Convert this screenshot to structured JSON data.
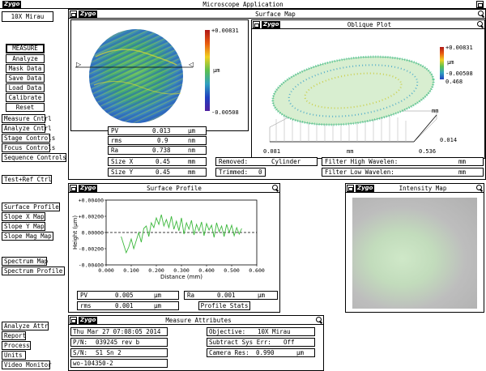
{
  "app": {
    "logo": "Zygo",
    "title": "Microscope  Application"
  },
  "objective_display": "10X  Mirau",
  "left_panel": {
    "measure": "MEASURE",
    "analyze": "Analyze",
    "mask_data": "Mask Data",
    "save_data": "Save Data",
    "load_data": "Load Data",
    "calibrate": "Calibrate",
    "reset": "Reset",
    "measure_cntrl": "Measure Cntrl",
    "analyze_cntrl": "Analyze Cntrl",
    "stage_controls": "Stage Controls",
    "focus_controls": "Focus Controls",
    "sequence_controls": "Sequence Controls",
    "test_ref": "Test+Ref Ctrl",
    "surface_profile": "Surface Profile",
    "slope_x_map": "Slope X Map",
    "slope_y_map": "Slope Y Map",
    "slope_mag_map": "Slope Mag Map",
    "spectrum_map": "Spectrum Map",
    "spectrum_profile": "Spectrum Profile",
    "analyze_attr": "Analyze Attr",
    "report": "Report",
    "process": "Process",
    "units": "Units",
    "video_monitor": "Video Monitor"
  },
  "surface_map": {
    "title": "Surface Map",
    "scale_max": "+0.00831",
    "scale_unit": "µm",
    "scale_min": "-0.00508",
    "stats": [
      {
        "label": "PV",
        "value": "0.013",
        "unit": "µm"
      },
      {
        "label": "rms",
        "value": "0.9",
        "unit": "nm"
      },
      {
        "label": "Ra",
        "value": "0.738",
        "unit": "nm"
      },
      {
        "label": "Size X",
        "value": "0.45",
        "unit": "mm"
      },
      {
        "label": "Size Y",
        "value": "0.45",
        "unit": "mm"
      }
    ],
    "removed_label": "Removed:",
    "removed_value": "Cylinder",
    "trimmed_label": "Trimmed:",
    "trimmed_value": "0",
    "filter_high_label": "Filter High Wavelen:",
    "filter_high_unit": "mm",
    "filter_low_label": "Filter Low  Wavelen:",
    "filter_low_unit": "mm"
  },
  "oblique_plot": {
    "title": "Oblique Plot",
    "scale_max": "+0.00831",
    "scale_unit": "µm",
    "scale_min": "-0.00508",
    "y_extent": "0.468",
    "y_unit": "mm",
    "y_start": "0.014",
    "x_start": "0.081",
    "x_unit": "mm",
    "x_end": "0.536"
  },
  "surface_profile": {
    "title": "Surface Profile",
    "ylabel": "Height (µm)",
    "xlabel": "Distance (mm)",
    "yticks": [
      "+0.00400",
      "+0.00200",
      "0.00000",
      "-0.00200",
      "-0.00400"
    ],
    "xticks": [
      "0.000",
      "0.100",
      "0.200",
      "0.300",
      "0.400",
      "0.500",
      "0.600"
    ],
    "pv_label": "PV",
    "pv_value": "0.005",
    "pv_unit": "µm",
    "rms_label": "rms",
    "rms_value": "0.001",
    "rms_unit": "µm",
    "ra_label": "Ra",
    "ra_value": "0.001",
    "ra_unit": "µm",
    "profile_stats": "Profile Stats"
  },
  "intensity_map": {
    "title": "Intensity Map"
  },
  "measure_attributes": {
    "title": "Measure Attributes",
    "datetime": "Thu Mar 27 07:08:05 2014",
    "pn_label": "P/N:",
    "pn_value": "039245 rev b",
    "sn_label": "S/N:",
    "sn_value": "S1 Sn 2",
    "wo": "wo-104350-2",
    "objective_label": "Objective:",
    "objective_value": "10X  Mirau",
    "subtract_label": "Subtract Sys Err:",
    "subtract_value": "Off",
    "camera_label": "Camera Res:",
    "camera_value": "0.990",
    "camera_unit": "µm"
  },
  "chart_data": {
    "type": "line",
    "x": [
      0.06,
      0.07,
      0.08,
      0.09,
      0.1,
      0.11,
      0.12,
      0.13,
      0.14,
      0.15,
      0.16,
      0.17,
      0.18,
      0.19,
      0.2,
      0.21,
      0.22,
      0.23,
      0.24,
      0.25,
      0.26,
      0.27,
      0.28,
      0.29,
      0.3,
      0.31,
      0.32,
      0.33,
      0.34,
      0.35,
      0.36,
      0.37,
      0.38,
      0.39,
      0.4,
      0.41,
      0.42,
      0.43,
      0.44,
      0.45,
      0.46,
      0.47,
      0.48,
      0.49,
      0.5,
      0.51,
      0.52,
      0.53,
      0.54
    ],
    "series": [
      {
        "values": [
          -0.0005,
          -0.0015,
          -0.0025,
          -0.0018,
          -0.0008,
          -0.002,
          -0.001,
          0.0,
          -0.0012,
          0.0005,
          0.0008,
          -0.0005,
          0.0012,
          0.0006,
          0.0018,
          0.001,
          0.0022,
          0.0008,
          0.0016,
          0.0006,
          0.002,
          0.0004,
          0.0014,
          0.0002,
          0.0018,
          -0.0002,
          0.0012,
          0.0004,
          0.0015,
          -0.0003,
          0.001,
          0.0002,
          0.0013,
          -0.0004,
          0.0011,
          0.0003,
          0.0009,
          -0.0006,
          0.0012,
          0.0001,
          0.0008,
          -0.0005,
          0.001,
          0.0,
          0.0009,
          -0.0004,
          0.0006,
          -0.0002,
          0.0005
        ]
      }
    ],
    "xlabel": "Distance (mm)",
    "ylabel": "Height (µm)",
    "xlim": [
      0,
      0.6
    ],
    "ylim": [
      -0.004,
      0.004
    ],
    "colors": {
      "line": "#3cb83c",
      "zero": "#000000"
    }
  }
}
